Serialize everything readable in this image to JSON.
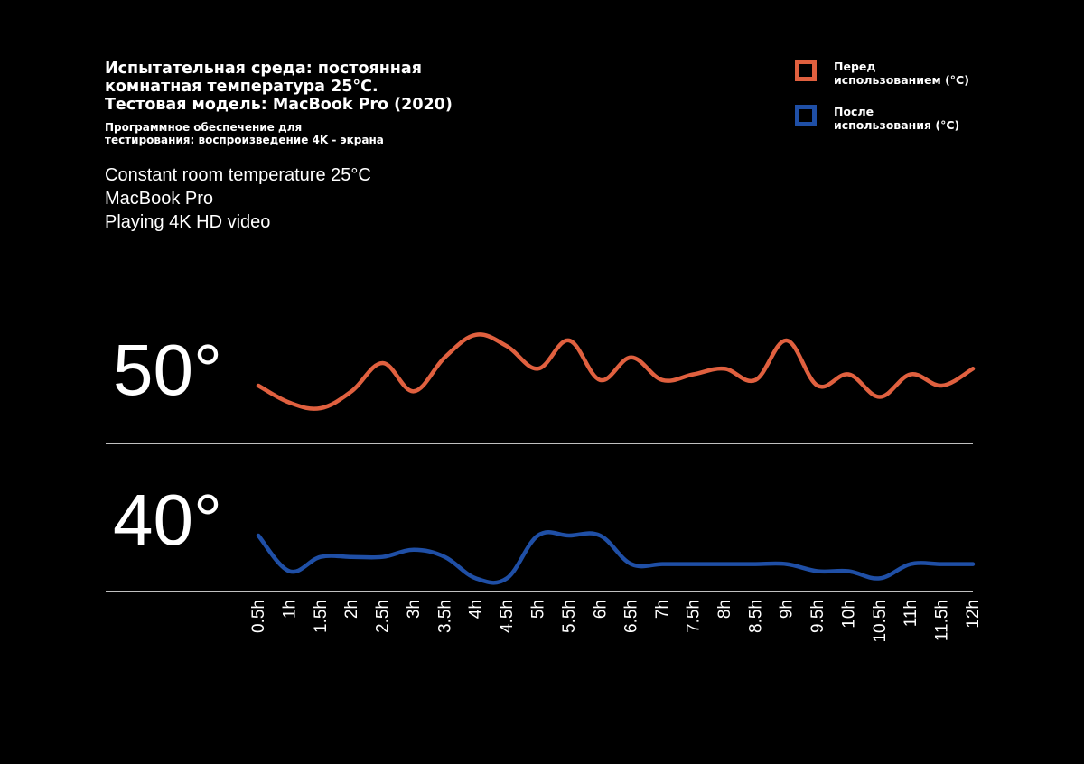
{
  "header": {
    "title_lines": [
      "Испытательная среда: постоянная",
      "комнатная температура 25°C.",
      "Тестовая модель: MacBook Pro (2020)"
    ],
    "subtitle_lines": [
      "Программное обеспечение для",
      "тестирования: воспроизведение 4K - экрана"
    ],
    "notes": [
      "Constant room temperature 25°C",
      "MacBook Pro",
      "Playing 4K HD video"
    ]
  },
  "legend": {
    "before": {
      "lines": [
        "Перед",
        "использованием (°C)"
      ],
      "color": "#e0603f"
    },
    "after": {
      "lines": [
        "После",
        "использования (°C)"
      ],
      "color": "#1f4fa6"
    }
  },
  "chart_data": {
    "type": "line",
    "x": [
      "0.5h",
      "1h",
      "1.5h",
      "2h",
      "2.5h",
      "3h",
      "3.5h",
      "4h",
      "4.5h",
      "5h",
      "5.5h",
      "6h",
      "6.5h",
      "7h",
      "7.5h",
      "8h",
      "8.5h",
      "9h",
      "9.5h",
      "10h",
      "10.5h",
      "11h",
      "11.5h",
      "12h"
    ],
    "y_labels": [
      "50°",
      "40°"
    ],
    "series": [
      {
        "name": "Перед использованием (°C)",
        "color": "#e0603f",
        "values": [
          49.7,
          49.4,
          49.3,
          49.6,
          50.1,
          49.6,
          50.2,
          50.6,
          50.4,
          50.0,
          50.5,
          49.8,
          50.2,
          49.8,
          49.9,
          50.0,
          49.8,
          50.5,
          49.7,
          49.9,
          49.5,
          49.9,
          49.7,
          50.0
        ]
      },
      {
        "name": "После использования (°C)",
        "color": "#1f4fa6",
        "values": [
          40.0,
          39.5,
          39.7,
          39.7,
          39.7,
          39.8,
          39.7,
          39.4,
          39.4,
          40.0,
          40.0,
          40.0,
          39.6,
          39.6,
          39.6,
          39.6,
          39.6,
          39.6,
          39.5,
          39.5,
          39.4,
          39.6,
          39.6,
          39.6
        ]
      }
    ]
  }
}
